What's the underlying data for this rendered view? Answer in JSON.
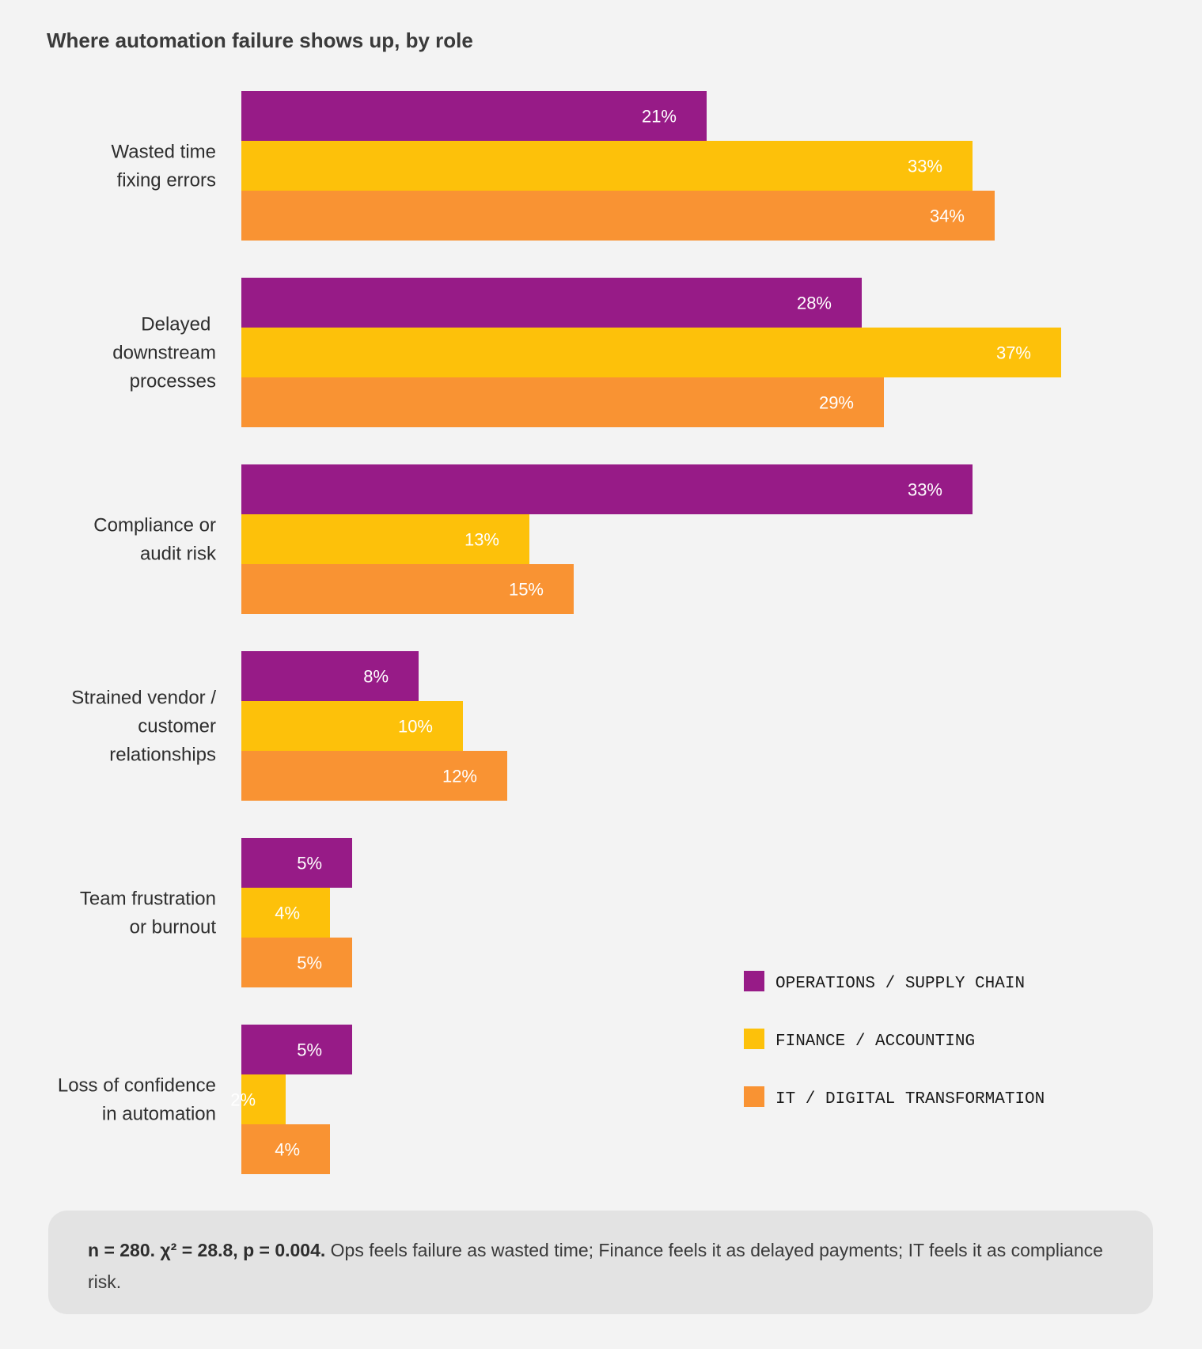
{
  "title": "Where automation failure shows up, by role",
  "chart_data": {
    "type": "bar",
    "orientation": "horizontal",
    "title": "Where automation failure shows up, by role",
    "value_format": "percent",
    "xlim": [
      0,
      37
    ],
    "categories": [
      [
        "Wasted time",
        "fixing errors"
      ],
      [
        "Delayed ",
        "downstream",
        "processes"
      ],
      [
        "Compliance or",
        "audit risk"
      ],
      [
        "Strained vendor /",
        "customer",
        "relationships"
      ],
      [
        "Team frustration",
        "or burnout"
      ],
      [
        "Loss of confidence",
        "in automation"
      ]
    ],
    "series": [
      {
        "name": "OPERATIONS / SUPPLY CHAIN",
        "color": "#971b87",
        "values": [
          21,
          28,
          33,
          8,
          5,
          5
        ]
      },
      {
        "name": "FINANCE / ACCOUNTING",
        "color": "#fdc10a",
        "values": [
          33,
          37,
          13,
          10,
          4,
          2
        ]
      },
      {
        "name": "IT / DIGITAL TRANSFORMATION",
        "color": "#f99333",
        "values": [
          34,
          29,
          15,
          12,
          5,
          4
        ]
      }
    ],
    "legend_position": "bottom-right",
    "grid": false
  },
  "footnote": {
    "stats": "n = 280. χ² = 28.8, p = 0.004.",
    "text": " Ops feels failure as wasted time; Finance feels it as delayed payments; IT feels it as compliance risk."
  }
}
